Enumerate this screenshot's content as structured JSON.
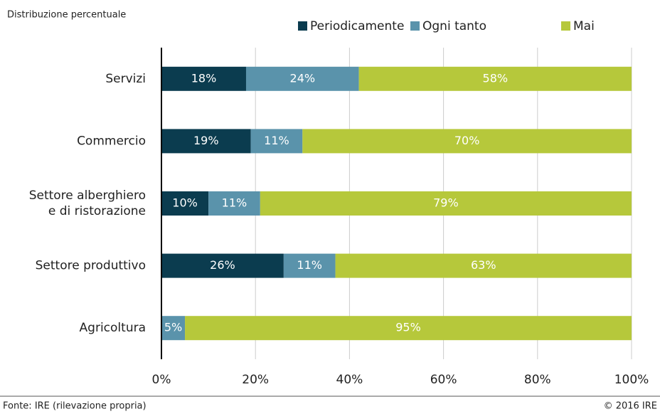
{
  "chart_data": {
    "type": "stacked-bar-horizontal",
    "subtitle": "Distribuzione percentuale",
    "categories": [
      [
        "Servizi"
      ],
      [
        "Commercio"
      ],
      [
        "Settore alberghiero",
        "e di ristorazione"
      ],
      [
        "Settore produttivo"
      ],
      [
        "Agricoltura"
      ]
    ],
    "series": [
      {
        "name": "Periodicamente",
        "color": "#0b3c4f",
        "values": [
          18,
          19,
          10,
          26,
          0
        ],
        "value_labels": [
          "18%",
          "19%",
          "10%",
          "26%",
          null
        ]
      },
      {
        "name": "Ogni tanto",
        "color": "#5a93ab",
        "values": [
          24,
          11,
          11,
          11,
          5
        ],
        "value_labels": [
          "24%",
          "11%",
          "11%",
          "11%",
          "5%"
        ]
      },
      {
        "name": "Mai",
        "color": "#b6c83b",
        "values": [
          58,
          70,
          79,
          63,
          95
        ],
        "value_labels": [
          "58%",
          "70%",
          "79%",
          "63%",
          "95%"
        ]
      }
    ],
    "xlim": [
      0,
      100
    ],
    "xticks": [
      {
        "value": 0,
        "label": "0%"
      },
      {
        "value": 20,
        "label": "20%"
      },
      {
        "value": 40,
        "label": "40%"
      },
      {
        "value": 60,
        "label": "60%"
      },
      {
        "value": 80,
        "label": "80%"
      },
      {
        "value": 100,
        "label": "100%"
      }
    ],
    "grid": true,
    "legend": "top",
    "source": "Fonte: IRE (rilevazione propria)",
    "copyright": "© 2016 IRE"
  }
}
